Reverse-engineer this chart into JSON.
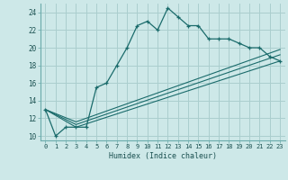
{
  "title": "",
  "xlabel": "Humidex (Indice chaleur)",
  "background_color": "#cde8e8",
  "grid_color": "#aacece",
  "line_color": "#1a6b6b",
  "xlim": [
    -0.5,
    23.5
  ],
  "ylim": [
    9.5,
    25.0
  ],
  "xticks": [
    0,
    1,
    2,
    3,
    4,
    5,
    6,
    7,
    8,
    9,
    10,
    11,
    12,
    13,
    14,
    15,
    16,
    17,
    18,
    19,
    20,
    21,
    22,
    23
  ],
  "yticks": [
    10,
    12,
    14,
    16,
    18,
    20,
    22,
    24
  ],
  "line1_x": [
    0,
    1,
    2,
    3,
    4,
    5,
    6,
    7,
    8,
    9,
    10,
    11,
    12,
    13,
    14,
    15,
    16,
    17,
    18,
    19,
    20,
    21,
    22,
    23
  ],
  "line1_y": [
    13,
    10,
    11,
    11,
    11,
    15.5,
    16,
    18,
    20,
    22.5,
    23,
    22,
    24.5,
    23.5,
    22.5,
    22.5,
    21,
    21,
    21,
    20.5,
    20,
    20,
    19,
    18.5
  ],
  "line2_x": [
    0,
    3,
    23
  ],
  "line2_y": [
    13,
    11,
    18.5
  ],
  "line3_x": [
    0,
    3,
    23
  ],
  "line3_y": [
    13,
    11.3,
    19.2
  ],
  "line4_x": [
    0,
    3,
    23
  ],
  "line4_y": [
    13,
    11.6,
    19.8
  ]
}
